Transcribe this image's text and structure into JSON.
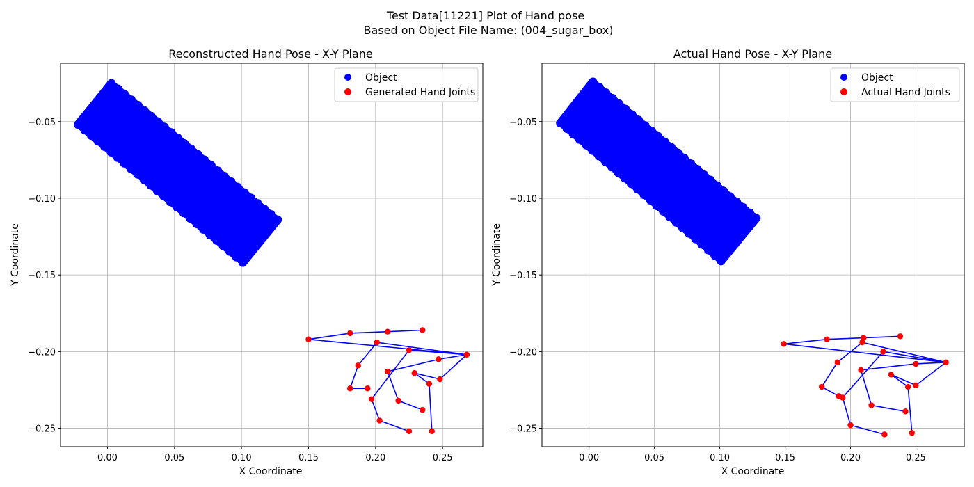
{
  "figure": {
    "suptitle_line1": "Test Data[11221] Plot of Hand pose",
    "suptitle_line2": "Based on Object File Name: (004_sugar_box)"
  },
  "chart_data": [
    {
      "type": "scatter",
      "title": "Reconstructed Hand Pose - X-Y Plane",
      "xlabel": "X Coordinate",
      "ylabel": "Y Coordinate",
      "xlim": [
        -0.035,
        0.28
      ],
      "ylim": [
        -0.262,
        -0.012
      ],
      "xticks": [
        0.0,
        0.05,
        0.1,
        0.15,
        0.2,
        0.25
      ],
      "xtick_labels": [
        "0.00",
        "0.05",
        "0.10",
        "0.15",
        "0.20",
        "0.25"
      ],
      "yticks": [
        -0.05,
        -0.1,
        -0.15,
        -0.2,
        -0.25
      ],
      "ytick_labels": [
        "−0.05",
        "−0.10",
        "−0.15",
        "−0.20",
        "−0.25"
      ],
      "grid": true,
      "legend_position": "top-right",
      "object": {
        "name": "Object",
        "color": "#0000ff",
        "corners": [
          [
            0.003,
            -0.025
          ],
          [
            -0.022,
            -0.052
          ],
          [
            0.101,
            -0.142
          ],
          [
            0.127,
            -0.114
          ]
        ]
      },
      "hand": {
        "name": "Generated Hand Joints",
        "point_color": "#ff0000",
        "line_color": "#0000ff",
        "wrist": [
          0.268,
          -0.202
        ],
        "fingers": [
          [
            [
              0.15,
              -0.192
            ],
            [
              0.181,
              -0.188
            ],
            [
              0.209,
              -0.187
            ],
            [
              0.235,
              -0.186
            ]
          ],
          [
            [
              0.201,
              -0.194
            ],
            [
              0.187,
              -0.209
            ],
            [
              0.181,
              -0.224
            ],
            [
              0.194,
              -0.224
            ]
          ],
          [
            [
              0.225,
              -0.199
            ],
            [
              0.197,
              -0.231
            ],
            [
              0.203,
              -0.245
            ],
            [
              0.225,
              -0.252
            ]
          ],
          [
            [
              0.247,
              -0.205
            ],
            [
              0.209,
              -0.213
            ],
            [
              0.217,
              -0.232
            ],
            [
              0.235,
              -0.238
            ]
          ],
          [
            [
              0.248,
              -0.218
            ],
            [
              0.229,
              -0.214
            ],
            [
              0.24,
              -0.221
            ],
            [
              0.242,
              -0.252
            ]
          ]
        ]
      }
    },
    {
      "type": "scatter",
      "title": "Actual Hand Pose - X-Y Plane",
      "xlabel": "X Coordinate",
      "ylabel": "Y Coordinate",
      "xlim": [
        -0.036,
        0.287
      ],
      "ylim": [
        -0.262,
        -0.012
      ],
      "xticks": [
        0.0,
        0.05,
        0.1,
        0.15,
        0.2,
        0.25
      ],
      "xtick_labels": [
        "0.00",
        "0.05",
        "0.10",
        "0.15",
        "0.20",
        "0.25"
      ],
      "yticks": [
        -0.05,
        -0.1,
        -0.15,
        -0.2,
        -0.25
      ],
      "ytick_labels": [
        "−0.05",
        "−0.10",
        "−0.15",
        "−0.20",
        "−0.25"
      ],
      "grid": true,
      "legend_position": "top-right",
      "object": {
        "name": "Object",
        "color": "#0000ff",
        "corners": [
          [
            0.003,
            -0.024
          ],
          [
            -0.022,
            -0.051
          ],
          [
            0.101,
            -0.141
          ],
          [
            0.128,
            -0.113
          ]
        ]
      },
      "hand": {
        "name": "Actual Hand Joints",
        "point_color": "#ff0000",
        "line_color": "#0000ff",
        "wrist": [
          0.273,
          -0.207
        ],
        "fingers": [
          [
            [
              0.149,
              -0.195
            ],
            [
              0.182,
              -0.192
            ],
            [
              0.21,
              -0.191
            ],
            [
              0.238,
              -0.19
            ]
          ],
          [
            [
              0.209,
              -0.194
            ],
            [
              0.19,
              -0.207
            ],
            [
              0.178,
              -0.223
            ],
            [
              0.191,
              -0.229
            ]
          ],
          [
            [
              0.225,
              -0.2
            ],
            [
              0.194,
              -0.23
            ],
            [
              0.2,
              -0.248
            ],
            [
              0.226,
              -0.254
            ]
          ],
          [
            [
              0.25,
              -0.208
            ],
            [
              0.208,
              -0.212
            ],
            [
              0.216,
              -0.235
            ],
            [
              0.242,
              -0.239
            ]
          ],
          [
            [
              0.25,
              -0.222
            ],
            [
              0.231,
              -0.215
            ],
            [
              0.244,
              -0.223
            ],
            [
              0.247,
              -0.253
            ]
          ]
        ]
      }
    }
  ]
}
